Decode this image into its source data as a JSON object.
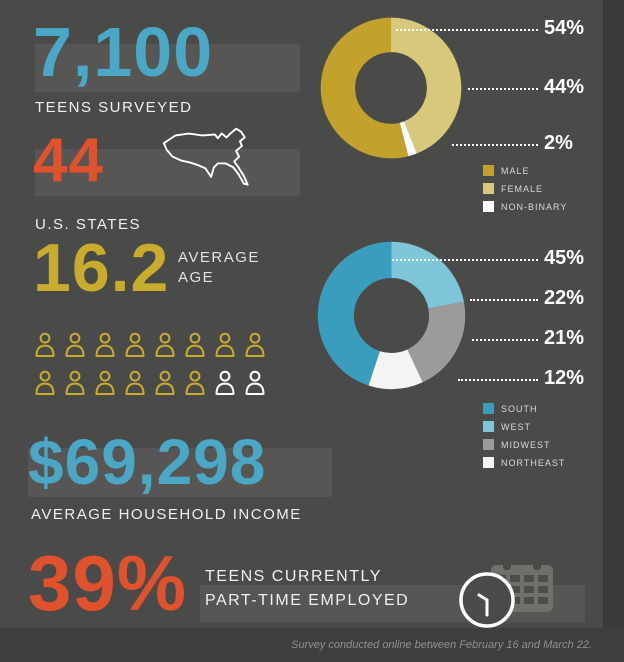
{
  "stats": {
    "teens_value": "7,100",
    "teens_label": "TEENS SURVEYED",
    "states_value": "44",
    "states_label": "U.S. STATES",
    "age_value": "16.2",
    "age_label_line1": "AVERAGE",
    "age_label_line2": "AGE",
    "income_value": "$69,298",
    "income_label": "AVERAGE HOUSEHOLD INCOME",
    "employed_value": "39%",
    "employed_label_line1": "TEENS CURRENTLY",
    "employed_label_line2": "PART-TIME EMPLOYED"
  },
  "footer": {
    "text": "Survey conducted online between February 16 and March 22."
  },
  "people": {
    "total": 16,
    "per_row": 8,
    "white_count": 2,
    "color_yellow": "#c9ac2e",
    "color_white": "#ffffff"
  },
  "icons": {
    "map": "us-map-icon",
    "clock": "clock-icon",
    "calendar": "calendar-icon",
    "person": "person-icon"
  },
  "colors": {
    "background": "#4a4a49",
    "highlight_band": "#575655",
    "teal": "#4aa7c5",
    "orange": "#e0512d",
    "gold": "#c9ac2e",
    "footer_band": "#3e3e3d"
  },
  "chart_data": [
    {
      "type": "pie",
      "donut": true,
      "title": "",
      "categories": [
        "MALE",
        "FEMALE",
        "NON-BINARY"
      ],
      "values": [
        54,
        44,
        2
      ],
      "labels": [
        "54%",
        "44%",
        "2%"
      ],
      "colors": [
        "#c3a22c",
        "#d8c87c",
        "#ffffff"
      ],
      "order": [
        1,
        2,
        0
      ],
      "legend_position": "bottom-right"
    },
    {
      "type": "pie",
      "donut": true,
      "title": "",
      "categories": [
        "SOUTH",
        "WEST",
        "MIDWEST",
        "NORTHEAST"
      ],
      "values": [
        45,
        22,
        21,
        12
      ],
      "labels": [
        "45%",
        "22%",
        "21%",
        "12%"
      ],
      "colors": [
        "#3b9dbd",
        "#7fc5da",
        "#9b9b9a",
        "#f4f4f2"
      ],
      "order": [
        1,
        2,
        3,
        0
      ],
      "legend_position": "bottom-right"
    }
  ]
}
